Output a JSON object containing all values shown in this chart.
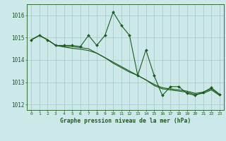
{
  "title": "Graphe pression niveau de la mer (hPa)",
  "background_color": "#cce8e8",
  "grid_color": "#aacccc",
  "line_color": "#1a5c1a",
  "xlim": [
    -0.5,
    23.5
  ],
  "ylim": [
    1011.75,
    1016.5
  ],
  "yticks": [
    1012,
    1013,
    1014,
    1015,
    1016
  ],
  "xticks": [
    0,
    1,
    2,
    3,
    4,
    5,
    6,
    7,
    8,
    9,
    10,
    11,
    12,
    13,
    14,
    15,
    16,
    17,
    18,
    19,
    20,
    21,
    22,
    23
  ],
  "series": [
    [
      1014.9,
      1015.1,
      1014.9,
      1014.65,
      1014.65,
      1014.65,
      1014.6,
      1015.1,
      1014.65,
      1015.1,
      1016.15,
      1015.55,
      1015.1,
      1013.3,
      1014.45,
      1013.3,
      1012.4,
      1012.8,
      1012.8,
      1012.5,
      1012.4,
      1012.55,
      1012.75,
      1012.45
    ],
    [
      1014.9,
      1015.1,
      1014.9,
      1014.65,
      1014.6,
      1014.6,
      1014.55,
      1014.5,
      1014.3,
      1014.1,
      1013.9,
      1013.7,
      1013.5,
      1013.3,
      1013.1,
      1012.9,
      1012.75,
      1012.7,
      1012.65,
      1012.6,
      1012.5,
      1012.55,
      1012.7,
      1012.45
    ],
    [
      1014.9,
      1015.1,
      1014.9,
      1014.65,
      1014.58,
      1014.52,
      1014.48,
      1014.42,
      1014.3,
      1014.1,
      1013.85,
      1013.65,
      1013.45,
      1013.3,
      1013.1,
      1012.85,
      1012.7,
      1012.65,
      1012.6,
      1012.55,
      1012.45,
      1012.5,
      1012.65,
      1012.4
    ]
  ]
}
